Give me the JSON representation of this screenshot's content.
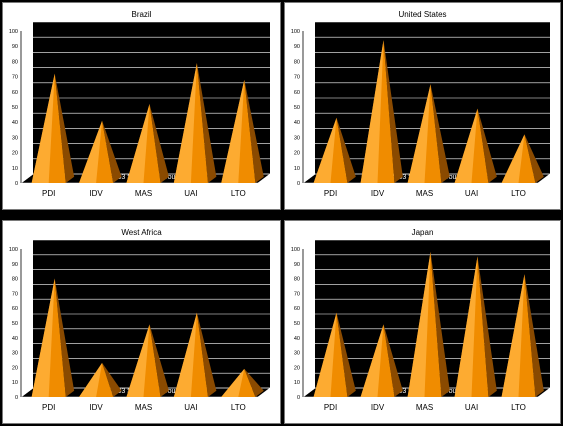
{
  "watermark": "©2003 SigmaTwoGroup.com",
  "colors": {
    "plot_background": "#000000",
    "grid": "#ffffff",
    "pyramid_light": "#ffb03a",
    "pyramid_mid": "#f08c00",
    "pyramid_dark": "#8a4a00"
  },
  "chart_data": [
    {
      "type": "bar",
      "title": "Brazil",
      "categories": [
        "PDI",
        "IDV",
        "MAS",
        "UAI",
        "LTO"
      ],
      "values": [
        69,
        38,
        49,
        76,
        65
      ],
      "ylim": [
        0,
        100
      ],
      "yticks": [
        0,
        10,
        20,
        30,
        40,
        50,
        60,
        70,
        80,
        90,
        100
      ],
      "grid": true
    },
    {
      "type": "bar",
      "title": "United States",
      "categories": [
        "PDI",
        "IDV",
        "MAS",
        "UAI",
        "LTO"
      ],
      "values": [
        40,
        91,
        62,
        46,
        29
      ],
      "ylim": [
        0,
        100
      ],
      "yticks": [
        0,
        10,
        20,
        30,
        40,
        50,
        60,
        70,
        80,
        90,
        100
      ],
      "grid": true
    },
    {
      "type": "bar",
      "title": "West Africa",
      "categories": [
        "PDI",
        "IDV",
        "MAS",
        "UAI",
        "LTO"
      ],
      "values": [
        77,
        20,
        46,
        54,
        16
      ],
      "ylim": [
        0,
        100
      ],
      "yticks": [
        0,
        10,
        20,
        30,
        40,
        50,
        60,
        70,
        80,
        90,
        100
      ],
      "grid": true
    },
    {
      "type": "bar",
      "title": "Japan",
      "categories": [
        "PDI",
        "IDV",
        "MAS",
        "UAI",
        "LTO"
      ],
      "values": [
        54,
        46,
        95,
        92,
        80
      ],
      "ylim": [
        0,
        100
      ],
      "yticks": [
        0,
        10,
        20,
        30,
        40,
        50,
        60,
        70,
        80,
        90,
        100
      ],
      "grid": true
    }
  ]
}
